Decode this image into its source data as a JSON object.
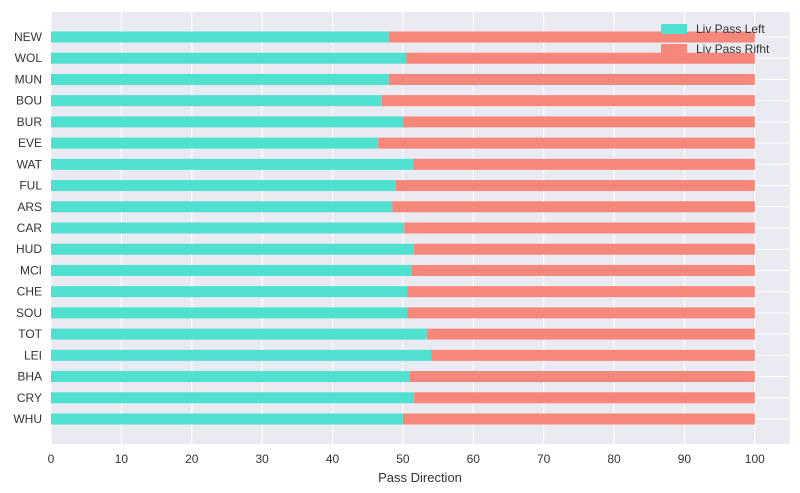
{
  "chart_data": {
    "type": "bar",
    "orientation": "horizontal",
    "stacked": true,
    "xlabel": "Pass Direction",
    "ylabel": "",
    "xlim": [
      0,
      105
    ],
    "x_ticks": [
      0,
      10,
      20,
      30,
      40,
      50,
      60,
      70,
      80,
      90,
      100
    ],
    "grid": true,
    "legend_position": "top-right",
    "categories": [
      "NEW",
      "WOL",
      "MUN",
      "BOU",
      "BUR",
      "EVE",
      "WAT",
      "FUL",
      "ARS",
      "CAR",
      "HUD",
      "MCI",
      "CHE",
      "SOU",
      "TOT",
      "LEI",
      "BHA",
      "CRY",
      "WHU"
    ],
    "series": [
      {
        "name": "Liv Pass Left",
        "color": "#50e0d0",
        "values": [
          48,
          50.5,
          48,
          47,
          50,
          46.5,
          51.5,
          49,
          48.5,
          50.2,
          51.6,
          51.2,
          50.6,
          50.6,
          53.4,
          54,
          51,
          51.6,
          50
        ]
      },
      {
        "name": "Liv Pass Rifht",
        "color": "#f8877b",
        "values": [
          52,
          49.5,
          52,
          53,
          50,
          53.5,
          48.5,
          51,
          51.5,
          49.8,
          48.4,
          48.8,
          49.4,
          49.4,
          46.6,
          46,
          49,
          48.4,
          50
        ]
      }
    ],
    "background_color": "#eaeaf2"
  }
}
